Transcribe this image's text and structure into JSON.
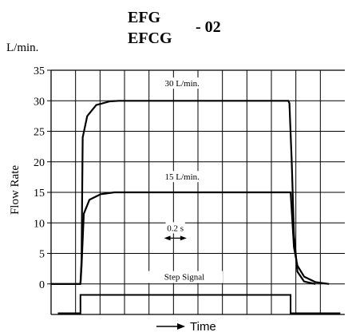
{
  "chart_data": {
    "type": "line",
    "title_line1": "EFG",
    "title_line2": "EFCG",
    "title_suffix": "- 02",
    "y_unit": "L/min.",
    "ylabel": "Flow Rate",
    "xlabel": "Time",
    "ylim": [
      -5,
      35
    ],
    "yticks": [
      "35",
      "30",
      "25",
      "20",
      "15",
      "10",
      "5",
      "0"
    ],
    "ytick_values": [
      35,
      30,
      25,
      20,
      15,
      10,
      5,
      0
    ],
    "x_divisions": 12,
    "xlim": [
      0,
      1.3
    ],
    "grid": true,
    "series": [
      {
        "name": "30 L/min.",
        "points": [
          [
            0,
            0
          ],
          [
            0.13,
            0
          ],
          [
            0.135,
            4
          ],
          [
            0.14,
            24
          ],
          [
            0.16,
            27.5
          ],
          [
            0.2,
            29.3
          ],
          [
            0.26,
            29.9
          ],
          [
            0.3,
            30
          ],
          [
            1.05,
            30
          ],
          [
            1.055,
            29.6
          ],
          [
            1.065,
            20
          ],
          [
            1.075,
            8
          ],
          [
            1.09,
            2
          ],
          [
            1.12,
            0.4
          ],
          [
            1.17,
            0
          ]
        ]
      },
      {
        "name": "15 L/min.",
        "points": [
          [
            0,
            0
          ],
          [
            0.13,
            0
          ],
          [
            0.135,
            3
          ],
          [
            0.145,
            11.5
          ],
          [
            0.17,
            13.8
          ],
          [
            0.22,
            14.7
          ],
          [
            0.28,
            15
          ],
          [
            1.06,
            15
          ],
          [
            1.065,
            12
          ],
          [
            1.075,
            6
          ],
          [
            1.09,
            3
          ],
          [
            1.12,
            1.2
          ],
          [
            1.17,
            0.3
          ],
          [
            1.23,
            0
          ]
        ]
      }
    ],
    "step_signal": {
      "name": "Step Signal",
      "low": -4.8,
      "high": -1.8,
      "x_start": 0.03,
      "x_rise": 0.13,
      "x_fall": 1.06,
      "x_end": 1.28
    },
    "annotation": {
      "label": "0.2 s",
      "x_from": 0.5,
      "x_to": 0.6,
      "y": 7.5
    }
  }
}
